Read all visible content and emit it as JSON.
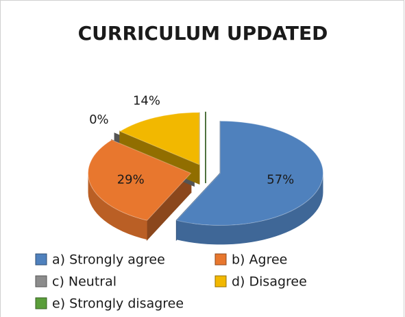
{
  "chart_data": {
    "type": "pie",
    "title": "CURRICULUM UPDATED",
    "categories": [
      "a) Strongly agree",
      "b) Agree",
      "c) Neutral",
      "d) Disagree",
      "e) Strongly disagree"
    ],
    "values": [
      57,
      29,
      0,
      14,
      0
    ],
    "value_labels": [
      "57%",
      "29%",
      "0%",
      "14%",
      null
    ],
    "colors": [
      "#4f81bd",
      "#e8772e",
      "#8c8c8c",
      "#f2b800",
      "#5a9e3a"
    ],
    "legend": "bottom"
  }
}
